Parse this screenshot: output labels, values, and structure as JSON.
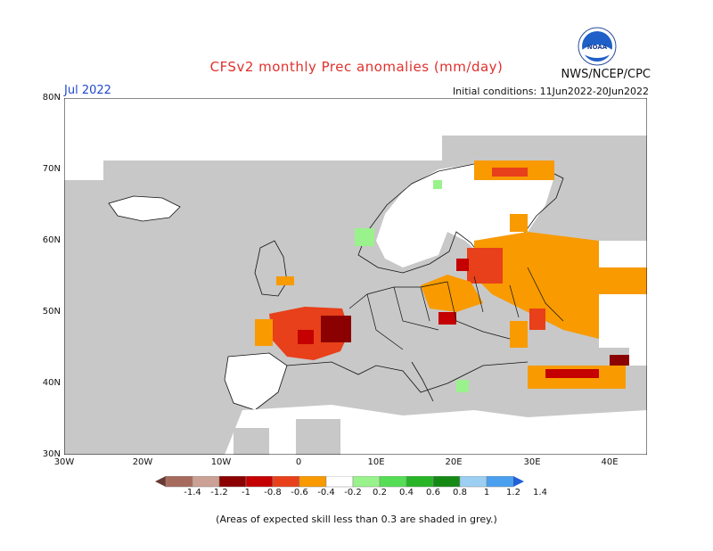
{
  "header": {
    "title": "CFSv2 monthly Prec anomalies (mm/day)",
    "agency": "NWS/NCEP/CPC",
    "month": "Jul 2022",
    "initial_conditions": "Initial conditions: 11Jun2022-20Jun2022",
    "logo_text": "NOAA"
  },
  "axes": {
    "lat_labels": [
      "80N",
      "70N",
      "60N",
      "50N",
      "40N",
      "30N"
    ],
    "lon_labels": [
      "30W",
      "20W",
      "10W",
      "0",
      "10E",
      "20E",
      "30E",
      "40E"
    ]
  },
  "colorbar": {
    "labels": [
      "-1.4",
      "-1.2",
      "-1",
      "-0.8",
      "-0.6",
      "-0.4",
      "-0.2",
      "0.2",
      "0.4",
      "0.6",
      "0.8",
      "1",
      "1.2",
      "1.4"
    ],
    "colors": [
      "#6a3a32",
      "#a76b5e",
      "#caa194",
      "#8b0000",
      "#c40000",
      "#e8401a",
      "#f89a00",
      "#ffffff",
      "#9af28c",
      "#55de55",
      "#27b527",
      "#148a14",
      "#9ccff2",
      "#4aa0ee",
      "#2060d8"
    ],
    "end_low": "#6a3a32",
    "end_high": "#2060d8"
  },
  "footnote": "(Areas of expected skill less than 0.3 are shaded in grey.)"
}
